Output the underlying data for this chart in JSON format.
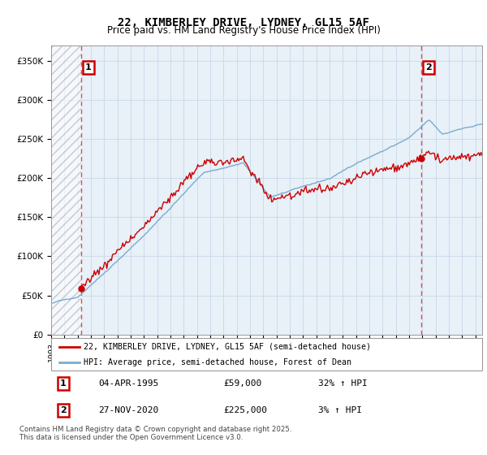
{
  "title_line1": "22, KIMBERLEY DRIVE, LYDNEY, GL15 5AF",
  "title_line2": "Price paid vs. HM Land Registry's House Price Index (HPI)",
  "legend_line1": "22, KIMBERLEY DRIVE, LYDNEY, GL15 5AF (semi-detached house)",
  "legend_line2": "HPI: Average price, semi-detached house, Forest of Dean",
  "annotation1_date": "04-APR-1995",
  "annotation1_price": "£59,000",
  "annotation1_hpi": "32% ↑ HPI",
  "annotation2_date": "27-NOV-2020",
  "annotation2_price": "£225,000",
  "annotation2_hpi": "3% ↑ HPI",
  "footer": "Contains HM Land Registry data © Crown copyright and database right 2025.\nThis data is licensed under the Open Government Licence v3.0.",
  "red_line_color": "#cc0000",
  "blue_line_color": "#7aadcf",
  "dashed_vline_color": "#dd3333",
  "annotation_box_color": "#cc0000",
  "grid_color": "#c8d8e8",
  "bg_color": "#e8f0f8",
  "ylim": [
    0,
    370000
  ],
  "xlim_start": 1993.0,
  "xlim_end": 2025.5,
  "sale1_x": 1995.27,
  "sale1_y": 59000,
  "sale2_x": 2020.92,
  "sale2_y": 225000
}
